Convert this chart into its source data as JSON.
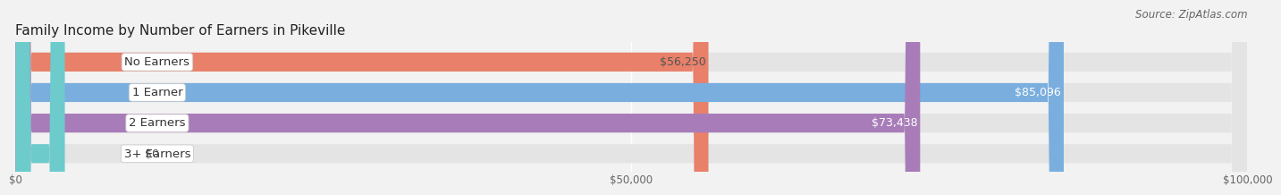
{
  "title": "Family Income by Number of Earners in Pikeville",
  "source": "Source: ZipAtlas.com",
  "categories": [
    "No Earners",
    "1 Earner",
    "2 Earners",
    "3+ Earners"
  ],
  "values": [
    56250,
    85096,
    73438,
    0
  ],
  "bar_colors": [
    "#E8806A",
    "#7aaede",
    "#a87cb8",
    "#6dcbcc"
  ],
  "value_labels": [
    "$56,250",
    "$85,096",
    "$73,438",
    "$0"
  ],
  "value_label_colors": [
    "#555555",
    "#ffffff",
    "#ffffff",
    "#555555"
  ],
  "xlim": [
    0,
    100000
  ],
  "xticks": [
    0,
    50000,
    100000
  ],
  "xtick_labels": [
    "$0",
    "$50,000",
    "$100,000"
  ],
  "background_color": "#f2f2f2",
  "bar_bg_color": "#e4e4e4",
  "bar_height": 0.62,
  "title_fontsize": 11,
  "label_fontsize": 9.5,
  "value_fontsize": 9,
  "source_fontsize": 8.5
}
